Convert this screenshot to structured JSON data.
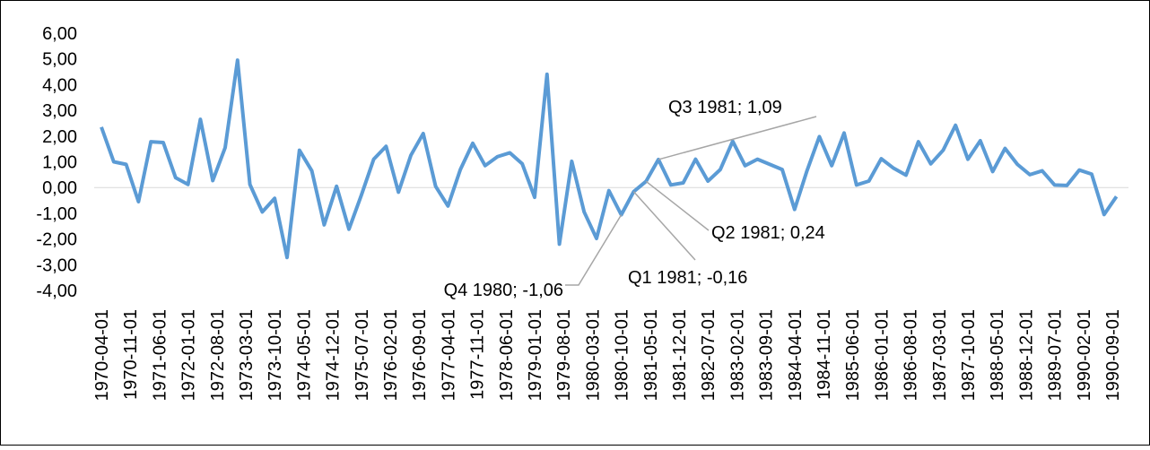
{
  "chart_data": {
    "type": "line",
    "x": [
      "1970-04-01",
      "1970-07-01",
      "1970-10-01",
      "1971-01-01",
      "1971-04-01",
      "1971-07-01",
      "1971-10-01",
      "1972-01-01",
      "1972-04-01",
      "1972-07-01",
      "1972-10-01",
      "1973-01-01",
      "1973-04-01",
      "1973-07-01",
      "1973-10-01",
      "1974-01-01",
      "1974-04-01",
      "1974-07-01",
      "1974-10-01",
      "1975-01-01",
      "1975-04-01",
      "1975-07-01",
      "1975-10-01",
      "1976-01-01",
      "1976-04-01",
      "1976-07-01",
      "1976-10-01",
      "1977-01-01",
      "1977-04-01",
      "1977-07-01",
      "1977-10-01",
      "1978-01-01",
      "1978-04-01",
      "1978-07-01",
      "1978-10-01",
      "1979-01-01",
      "1979-04-01",
      "1979-07-01",
      "1979-10-01",
      "1980-01-01",
      "1980-04-01",
      "1980-07-01",
      "1980-10-01",
      "1981-01-01",
      "1981-04-01",
      "1981-07-01",
      "1981-10-01",
      "1982-01-01",
      "1982-04-01",
      "1982-07-01",
      "1982-10-01",
      "1983-01-01",
      "1983-04-01",
      "1983-07-01",
      "1983-10-01",
      "1984-01-01",
      "1984-04-01",
      "1984-07-01",
      "1984-10-01",
      "1985-01-01",
      "1985-04-01",
      "1985-07-01",
      "1985-10-01",
      "1986-01-01",
      "1986-04-01",
      "1986-07-01",
      "1986-10-01",
      "1987-01-01",
      "1987-04-01",
      "1987-07-01",
      "1987-10-01",
      "1988-01-01",
      "1988-04-01",
      "1988-07-01",
      "1988-10-01",
      "1989-01-01",
      "1989-04-01",
      "1989-07-01",
      "1989-10-01",
      "1990-01-01",
      "1990-04-01",
      "1990-07-01",
      "1990-10-01"
    ],
    "series": [
      {
        "color": "#5b9bd5",
        "values": [
          2.35,
          1.0,
          0.9,
          -0.55,
          1.78,
          1.75,
          0.38,
          0.12,
          2.65,
          0.27,
          1.55,
          4.95,
          0.12,
          -0.95,
          -0.42,
          -2.72,
          1.45,
          0.65,
          -1.45,
          0.05,
          -1.62,
          -0.3,
          1.1,
          1.6,
          -0.18,
          1.25,
          2.1,
          0.05,
          -0.72,
          0.7,
          1.72,
          0.85,
          1.2,
          1.35,
          0.92,
          -0.38,
          4.4,
          -2.2,
          1.02,
          -0.95,
          -1.98,
          -0.12,
          -1.06,
          -0.16,
          0.24,
          1.09,
          0.1,
          0.18,
          1.1,
          0.25,
          0.7,
          1.8,
          0.85,
          1.1,
          0.9,
          0.7,
          -0.85,
          0.65,
          1.98,
          0.85,
          2.12,
          0.1,
          0.25,
          1.12,
          0.75,
          0.48,
          1.78,
          0.92,
          1.45,
          2.42,
          1.1,
          1.82,
          0.62,
          1.52,
          0.9,
          0.5,
          0.65,
          0.1,
          0.08,
          0.68,
          0.52,
          -1.05,
          -0.35
        ]
      }
    ],
    "ylim": [
      -4,
      6
    ],
    "yticks": [
      {
        "value": -4,
        "label": "-4,00"
      },
      {
        "value": -3,
        "label": "-3,00"
      },
      {
        "value": -2,
        "label": "-2,00"
      },
      {
        "value": -1,
        "label": "-1,00"
      },
      {
        "value": 0,
        "label": "0,00"
      },
      {
        "value": 1,
        "label": "1,00"
      },
      {
        "value": 2,
        "label": "2,00"
      },
      {
        "value": 3,
        "label": "3,00"
      },
      {
        "value": 4,
        "label": "4,00"
      },
      {
        "value": 5,
        "label": "5,00"
      },
      {
        "value": 6,
        "label": "6,00"
      }
    ],
    "xticks": [
      "1970-04-01",
      "1970-11-01",
      "1971-06-01",
      "1972-01-01",
      "1972-08-01",
      "1973-03-01",
      "1973-10-01",
      "1974-05-01",
      "1974-12-01",
      "1975-07-01",
      "1976-02-01",
      "1976-09-01",
      "1977-04-01",
      "1977-11-01",
      "1978-06-01",
      "1979-01-01",
      "1979-08-01",
      "1980-03-01",
      "1980-10-01",
      "1981-05-01",
      "1981-12-01",
      "1982-07-01",
      "1983-02-01",
      "1983-09-01",
      "1984-04-01",
      "1984-11-01",
      "1985-06-01",
      "1986-01-01",
      "1986-08-01",
      "1987-03-01",
      "1987-10-01",
      "1988-05-01",
      "1988-12-01",
      "1989-07-01",
      "1990-02-01",
      "1990-09-01"
    ],
    "annotations": [
      {
        "text": "Q3 1981; 1,09",
        "x": "1981-07-01",
        "y": 1.09
      },
      {
        "text": "Q2 1981; 0,24",
        "x": "1981-04-01",
        "y": 0.24
      },
      {
        "text": "Q1 1981; -0,16",
        "x": "1981-01-01",
        "y": -0.16
      },
      {
        "text": "Q4 1980; -1,06",
        "x": "1980-10-01",
        "y": -1.06
      }
    ]
  }
}
